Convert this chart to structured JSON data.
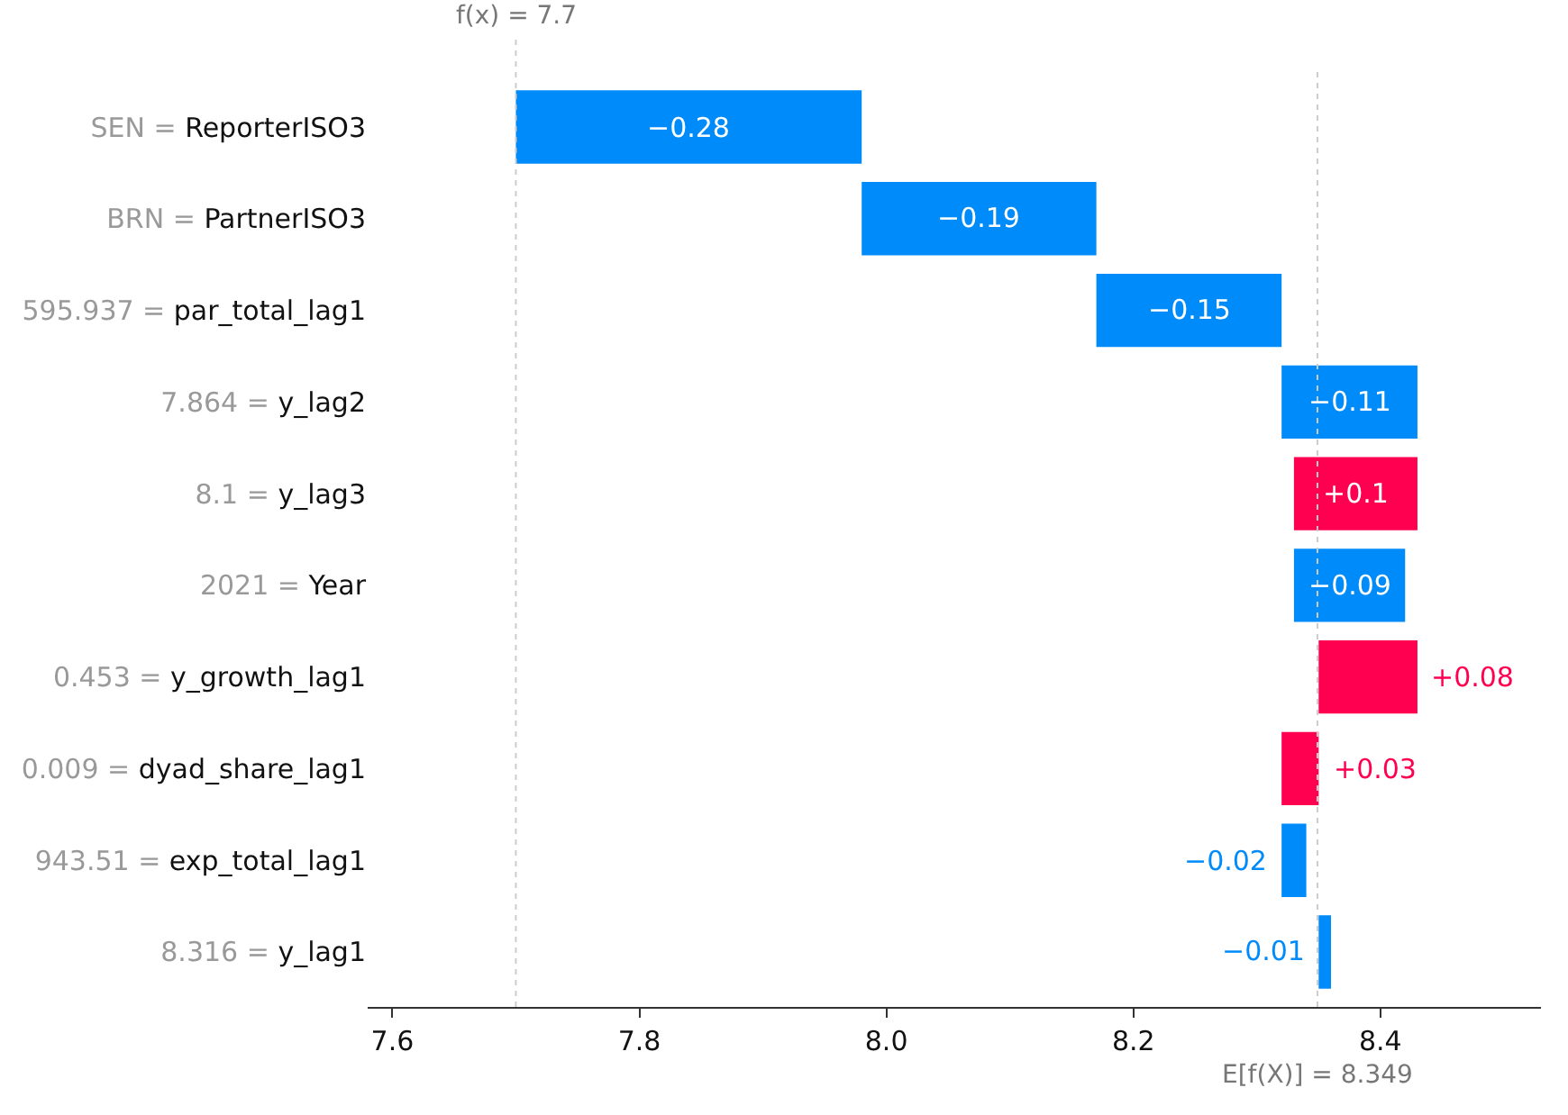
{
  "chart_data": {
    "type": "bar",
    "orientation": "horizontal",
    "categories": [
      "SEN = ReporterISO3",
      "BRN = PartnerISO3",
      "595.937 = par_total_lag1",
      "7.864 = y_lag2",
      "8.1 = y_lag3",
      "2021 = Year",
      "0.453 = y_growth_lag1",
      "0.009 = dyad_share_lag1",
      "943.51 = exp_total_lag1",
      "8.316 = y_lag1"
    ],
    "values": [
      -0.28,
      -0.19,
      -0.15,
      -0.11,
      0.1,
      -0.09,
      0.08,
      0.03,
      -0.02,
      -0.01
    ],
    "base": [
      7.98,
      8.17,
      8.32,
      8.43,
      8.33,
      8.42,
      8.35,
      8.32,
      8.34,
      8.36
    ],
    "colors": [
      "#008bfb",
      "#008bfb",
      "#008bfb",
      "#008bfb",
      "#ff0051",
      "#008bfb",
      "#ff0051",
      "#ff0051",
      "#008bfb",
      "#008bfb"
    ],
    "value_labels": [
      "−0.28",
      "−0.19",
      "−0.15",
      "−0.11",
      "+0.1",
      "−0.09",
      "+0.08",
      "+0.03",
      "−0.02",
      "−0.01"
    ],
    "xlim": [
      7.58,
      8.53
    ],
    "xticks": [
      {
        "value": 7.6,
        "label": "7.6"
      },
      {
        "value": 7.8,
        "label": "7.8"
      },
      {
        "value": 8.0,
        "label": "8.0"
      },
      {
        "value": 8.2,
        "label": "8.2"
      },
      {
        "value": 8.4,
        "label": "8.4"
      }
    ],
    "ref_lines": [
      {
        "axis": "x",
        "value": 7.7,
        "label": "f(x) = 7.7",
        "color": "#cccccc",
        "line_style": "dotted"
      },
      {
        "axis": "x",
        "value": 8.349,
        "label": "E[f(X)] = 8.349",
        "color": "#cccccc",
        "line_style": "dotted"
      }
    ]
  }
}
